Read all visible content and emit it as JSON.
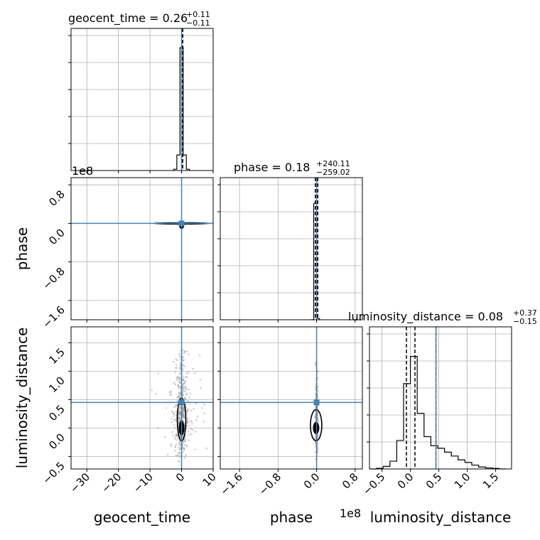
{
  "chart_data": {
    "type": "corner",
    "parameters": [
      "geocent_time",
      "phase",
      "luminosity_distance"
    ],
    "titles": {
      "geocent_time": {
        "label": "geocent_time = 0.26",
        "plus": "+0.11",
        "minus": "−0.11"
      },
      "phase": {
        "label": "phase = 0.18",
        "plus": "+240.11",
        "minus": "−259.02"
      },
      "luminosity_distance": {
        "label": "luminosity_distance = 0.08",
        "plus": "+0.37",
        "minus": "−0.15"
      }
    },
    "axis_labels": {
      "x": [
        "geocent_time",
        "phase",
        "luminosity_distance"
      ],
      "y": [
        "phase",
        "luminosity_distance"
      ]
    },
    "offset_labels": {
      "phase_y": "1e8",
      "phase_x": "1e8"
    },
    "axis_ranges": {
      "geocent_time": [
        -35,
        10
      ],
      "phase": [
        -2.0,
        0.95
      ],
      "luminosity_distance": [
        -0.72,
        1.78
      ]
    },
    "ticks": {
      "geocent_time": [
        -30,
        -20,
        -10,
        0,
        10
      ],
      "phase": [
        -1.6,
        -0.8,
        0.0,
        0.8
      ],
      "luminosity_distance": [
        -0.5,
        0.0,
        0.5,
        1.0,
        1.5
      ]
    },
    "tick_labels": {
      "geocent_time": [
        "−30",
        "−20",
        "−10",
        "0",
        "10"
      ],
      "phase_x": [
        "−1.6",
        "−0.8",
        "0.0",
        "0.8"
      ],
      "phase_y": [
        "0.8",
        "0.0",
        "−0.8",
        "−1.6"
      ],
      "luminosity_distance_x": [
        "−0.5",
        "0.0",
        "0.5",
        "1.0",
        "1.5"
      ],
      "luminosity_distance_y": [
        "1.5",
        "1.0",
        "0.5",
        "0.0",
        "−0.5"
      ]
    },
    "injection": {
      "geocent_time": 0.0,
      "phase": 0.0,
      "luminosity_distance": 0.45
    },
    "quantiles": {
      "geocent_time": [
        0.15,
        0.26,
        0.37
      ],
      "phase": [
        -0.027,
        0.0,
        0.024
      ],
      "luminosity_distance": [
        -0.07,
        0.08,
        0.45
      ]
    },
    "histograms": {
      "geocent_time": {
        "edges": [
          -2.5,
          -1.5,
          -0.5,
          0.5,
          1.5,
          2.5
        ],
        "counts": [
          0.01,
          0.12,
          0.95,
          0.12,
          0.01
        ]
      },
      "phase": {
        "edges": [
          -0.12,
          -0.06,
          0.0,
          0.06
        ],
        "counts": [
          0.0,
          0.9,
          0.01
        ]
      },
      "luminosity_distance": {
        "edges": [
          -0.72,
          -0.6,
          -0.48,
          -0.36,
          -0.24,
          -0.12,
          0.0,
          0.12,
          0.24,
          0.36,
          0.48,
          0.6,
          0.72,
          0.84,
          0.96,
          1.08,
          1.2,
          1.32,
          1.44,
          1.56,
          1.68
        ],
        "counts": [
          0,
          0.005,
          0.02,
          0.06,
          0.22,
          0.66,
          0.87,
          0.43,
          0.25,
          0.18,
          0.16,
          0.13,
          0.1,
          0.07,
          0.05,
          0.03,
          0.015,
          0.008,
          0.004,
          0.0
        ]
      }
    },
    "colors": {
      "hist": "#000000",
      "truth": "#4682b4",
      "scatter": "#9a9a9a",
      "grid": "#b0b0b0"
    },
    "grid": true
  }
}
